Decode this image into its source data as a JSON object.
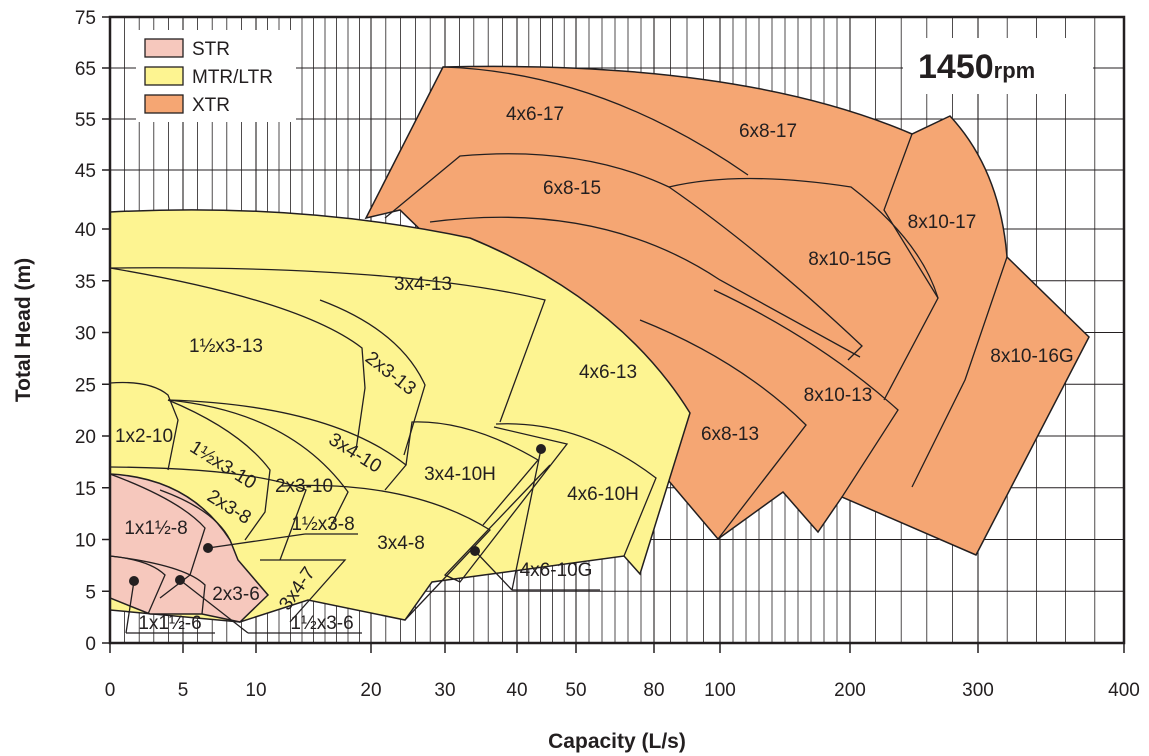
{
  "chart_data": {
    "type": "area",
    "title": "",
    "annotation": {
      "value": "1450",
      "unit": "rpm"
    },
    "xlabel": "Capacity (L/s)",
    "ylabel": "Total Head (m)",
    "xlim": [
      0,
      400
    ],
    "ylim": [
      0,
      75
    ],
    "x_scale": "piecewise-log",
    "x_ticks": [
      0,
      5,
      10,
      20,
      30,
      40,
      50,
      80,
      100,
      200,
      300,
      400
    ],
    "y_ticks": [
      0,
      5,
      10,
      15,
      20,
      25,
      30,
      35,
      40,
      45,
      55,
      65,
      75
    ],
    "grid": true,
    "legend": {
      "position": "top-left",
      "items": [
        {
          "label": "STR",
          "color": "#f6c8bd"
        },
        {
          "label": "MTR/LTR",
          "color": "#fdf491"
        },
        {
          "label": "XTR",
          "color": "#f5a673"
        }
      ]
    },
    "series": [
      {
        "name": "STR",
        "color": "#f6c8bd",
        "models": [
          "1x1½-8",
          "1x1½-6",
          "2x3-6",
          "2x3-8"
        ]
      },
      {
        "name": "MTR/LTR",
        "color": "#fdf491",
        "models": [
          "3x4-13",
          "1½x3-13",
          "2x3-13",
          "4x6-13",
          "1x2-10",
          "1½x3-10",
          "2x3-10",
          "3x4-10",
          "3x4-10H",
          "4x6-10H",
          "1½x3-8",
          "3x4-8",
          "3x4-7",
          "1½x3-6",
          "4x6-10G"
        ]
      },
      {
        "name": "XTR",
        "color": "#f5a673",
        "models": [
          "4x6-17",
          "6x8-17",
          "6x8-15",
          "8x10-17",
          "8x10-15G",
          "8x10-16G",
          "6x8-13",
          "8x10-13"
        ]
      }
    ]
  }
}
